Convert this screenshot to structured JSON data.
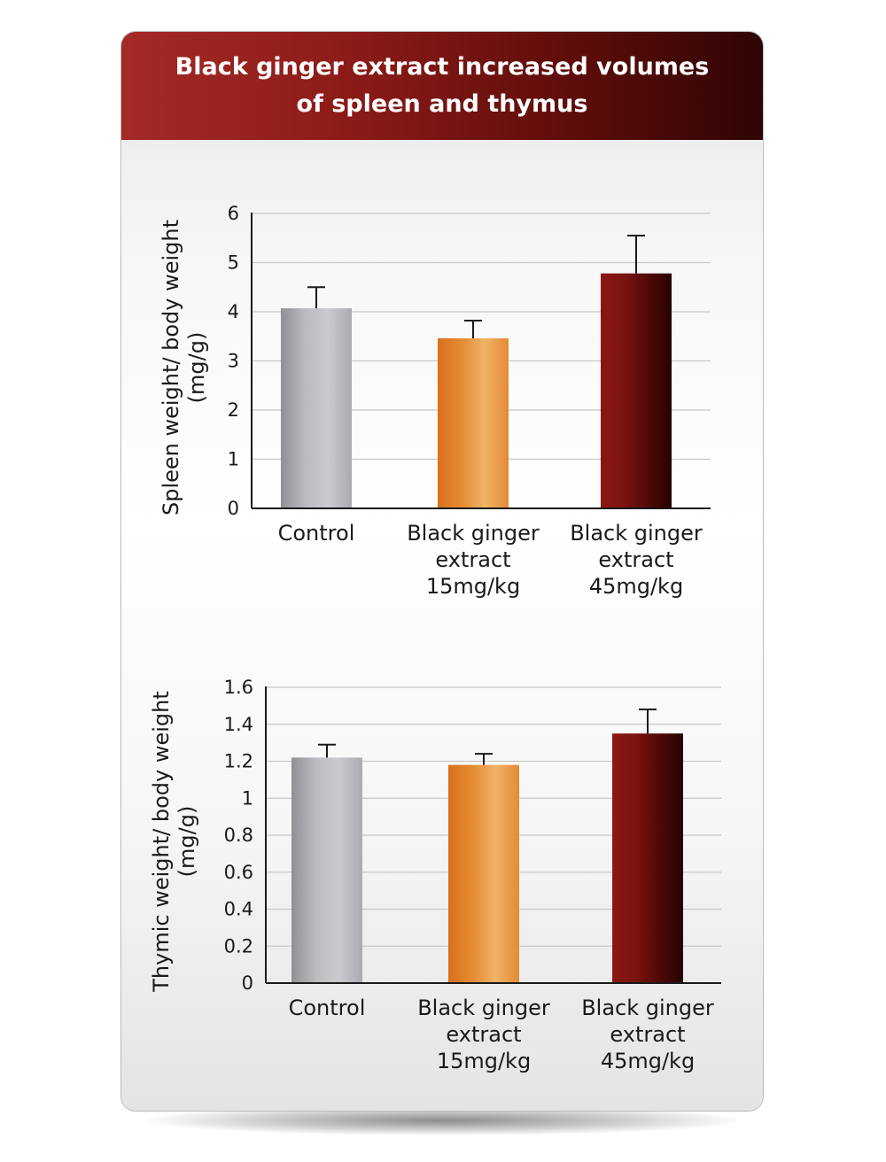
{
  "header": {
    "title": "Black ginger extract increased volumes of spleen and thymus"
  },
  "colors": {
    "control": "#a7a9ad",
    "dose_15": "#e07d24",
    "dose_45": "#7a1310",
    "header_start": "#a42a26",
    "header_end": "#2f0504"
  },
  "chart_data": [
    {
      "type": "bar",
      "categories": [
        [
          "Control"
        ],
        [
          "Black ginger",
          "extract",
          "15mg/kg"
        ],
        [
          "Black ginger",
          "extract",
          "45mg/kg"
        ]
      ],
      "values": [
        4.07,
        3.46,
        4.78
      ],
      "error": [
        0.43,
        0.36,
        0.77
      ],
      "ylabel": [
        "Spleen weight/ body weight",
        "(mg/g)"
      ],
      "ylim": [
        0,
        6
      ],
      "yticks": [
        "0",
        "1",
        "2",
        "3",
        "4",
        "5",
        "6"
      ],
      "grid": true
    },
    {
      "type": "bar",
      "categories": [
        [
          "Control"
        ],
        [
          "Black ginger",
          "extract",
          "15mg/kg"
        ],
        [
          "Black ginger",
          "extract",
          "45mg/kg"
        ]
      ],
      "values": [
        1.22,
        1.18,
        1.35
      ],
      "error": [
        0.07,
        0.06,
        0.13
      ],
      "ylabel": [
        "Thymic weight/ body weight",
        "(mg/g)"
      ],
      "ylim": [
        0,
        1.6
      ],
      "yticks": [
        "0",
        "0.2",
        "0.4",
        "0.6",
        "0.8",
        "1",
        "1.2",
        "1.4",
        "1.6"
      ],
      "grid": true
    }
  ]
}
